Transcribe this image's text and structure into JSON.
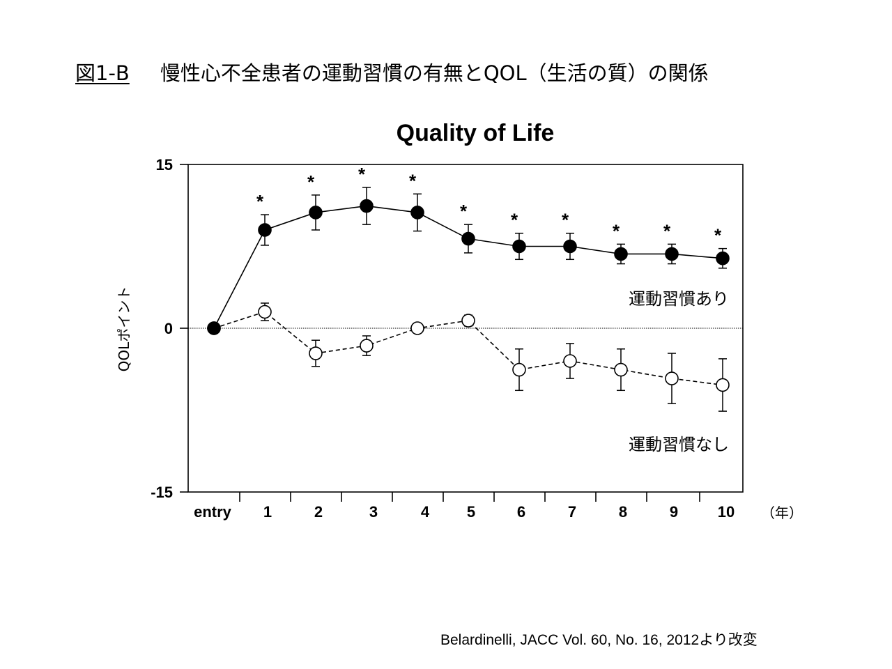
{
  "slide": {
    "figure_label": "図1-B",
    "title": "慢性心不全患者の運動習慣の有無とQOL（生活の質）の関係",
    "source": "Belardinelli, JACC Vol. 60, No. 16, 2012より改変"
  },
  "chart_data": {
    "type": "line",
    "title": "Quality of Life",
    "xlabel": "",
    "ylabel": "QOLポイント",
    "x_unit_label": "（年）",
    "categories": [
      "entry",
      "1",
      "2",
      "3",
      "4",
      "5",
      "6",
      "7",
      "8",
      "9",
      "10"
    ],
    "ylim": [
      -15,
      15
    ],
    "yticks": [
      15,
      0,
      -15
    ],
    "reference_line": 0,
    "grid": false,
    "series": [
      {
        "name": "運動習慣あり",
        "marker": "filled-circle",
        "line_style": "solid",
        "values": [
          0,
          9.0,
          10.6,
          11.2,
          10.6,
          8.2,
          7.5,
          7.5,
          6.8,
          6.8,
          6.4
        ],
        "err": [
          0,
          1.4,
          1.6,
          1.7,
          1.7,
          1.3,
          1.2,
          1.2,
          0.9,
          0.9,
          0.9
        ],
        "significance": [
          "",
          "*",
          "*",
          "*",
          "*",
          "*",
          "*",
          "*",
          "*",
          "*",
          "*"
        ]
      },
      {
        "name": "運動習慣なし",
        "marker": "open-circle",
        "line_style": "dashed",
        "values": [
          0,
          1.5,
          -2.3,
          -1.6,
          0,
          0.7,
          -3.8,
          -3.0,
          -3.8,
          -4.6,
          -5.2
        ],
        "err": [
          0,
          0.8,
          1.2,
          0.9,
          0,
          0.5,
          1.9,
          1.6,
          1.9,
          2.3,
          2.4
        ]
      }
    ]
  }
}
